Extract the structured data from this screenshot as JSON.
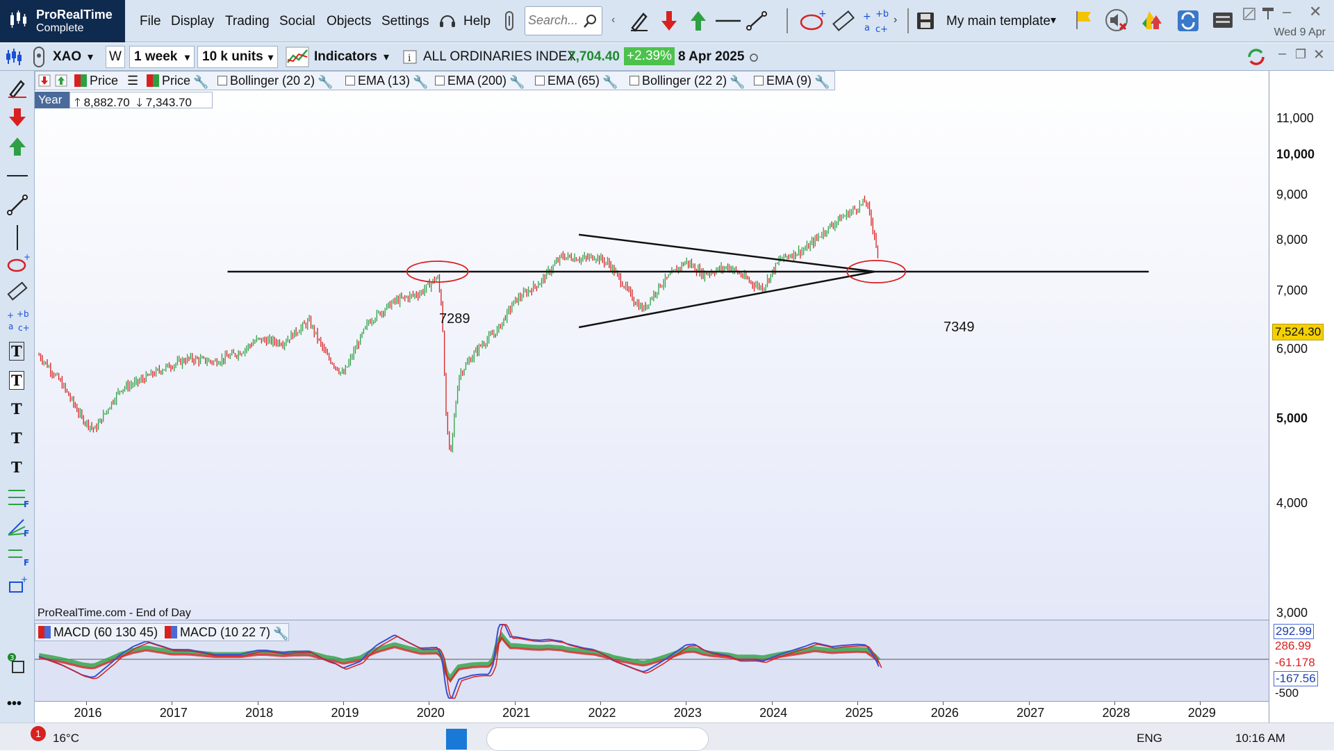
{
  "app": {
    "name": "ProRealTime",
    "edition": "Complete",
    "date": "Wed 9 Apr"
  },
  "menu": [
    "File",
    "Display",
    "Trading",
    "Social",
    "Objects",
    "Settings",
    "Help"
  ],
  "search": {
    "placeholder": "Search..."
  },
  "template": {
    "label": "My main template"
  },
  "toolbar2": {
    "symbol": "XAO",
    "period_letter": "W",
    "timeframe": "1 week",
    "units": "10 k units",
    "indicators_label": "Indicators",
    "instrument_name": "ALL ORDINARIES INDEX",
    "last_price": "7,704.40",
    "change": "+2.39%",
    "date": "8 Apr 2025"
  },
  "legend": {
    "price1": "Price",
    "price2": "Price",
    "indicators": [
      "Bollinger (20 2)",
      "EMA (13)",
      "EMA (200)",
      "EMA (65)",
      "Bollinger (22 2)",
      "EMA (9)"
    ],
    "year_label": "Year",
    "year_high": "8,882.70",
    "year_low": "7,343.70"
  },
  "annotations": {
    "left_level": "7289",
    "right_level": "7349"
  },
  "source": "ProRealTime.com - End of Day",
  "price_tag": "7,524.30",
  "y_axis": [
    "11,000",
    "10,000",
    "9,000",
    "8,000",
    "7,000",
    "6,000",
    "5,000",
    "4,000",
    "3,000"
  ],
  "x_axis": [
    "2016",
    "2017",
    "2018",
    "2019",
    "2020",
    "2021",
    "2022",
    "2023",
    "2024",
    "2025",
    "2026",
    "2027",
    "2028",
    "2029"
  ],
  "macd": {
    "legend": [
      "MACD (60 130 45)",
      "MACD (10 22 7)"
    ],
    "tags": [
      "292.99",
      "286.99",
      "-61.178",
      "-167.56",
      "-500"
    ]
  },
  "colors": {
    "up": "#2ea043",
    "down": "#d92020",
    "accent": "#0f2a4f",
    "price_tag": "#f5d000",
    "change_bg": "#4cc24c"
  },
  "chart_data": {
    "type": "line",
    "title": "ALL ORDINARIES INDEX",
    "xlabel": "",
    "ylabel": "",
    "log_scale": true,
    "ylim": [
      3000,
      11500
    ],
    "xlim": [
      2015.4,
      2029.8
    ],
    "series": [
      {
        "name": "",
        "x": [
          2015.45,
          2015.7,
          2015.95,
          2016.1,
          2016.4,
          2016.6,
          2016.9,
          2017.2,
          2017.5,
          2017.8,
          2018.0,
          2018.3,
          2018.6,
          2018.8,
          2019.0,
          2019.3,
          2019.6,
          2019.9,
          2020.1,
          2020.15,
          2020.2,
          2020.25,
          2020.35,
          2020.6,
          2020.8,
          2021.0,
          2021.3,
          2021.55,
          2021.8,
          2021.95,
          2022.1,
          2022.4,
          2022.5,
          2022.7,
          2023.0,
          2023.2,
          2023.5,
          2023.8,
          2023.9,
          2024.1,
          2024.4,
          2024.6,
          2024.8,
          2025.0,
          2025.1,
          2025.2,
          2025.25
        ],
        "values": [
          5900,
          5500,
          5000,
          4850,
          5400,
          5500,
          5700,
          5850,
          5800,
          5950,
          6150,
          6100,
          6450,
          5900,
          5600,
          6450,
          6800,
          6950,
          7250,
          6700,
          5000,
          4500,
          5600,
          6050,
          6300,
          6800,
          7150,
          7650,
          7600,
          7650,
          7500,
          6800,
          6650,
          7100,
          7550,
          7300,
          7450,
          7100,
          7050,
          7600,
          7800,
          8150,
          8450,
          8700,
          8850,
          8100,
          7524
        ]
      }
    ],
    "horizontal_line": 7349,
    "lines": [
      {
        "name": "",
        "x": [
          2021.75,
          2025.2
        ],
        "values": [
          8100,
          7349
        ]
      },
      {
        "name": "",
        "x": [
          2021.75,
          2025.2
        ],
        "values": [
          6350,
          7349
        ]
      }
    ]
  }
}
